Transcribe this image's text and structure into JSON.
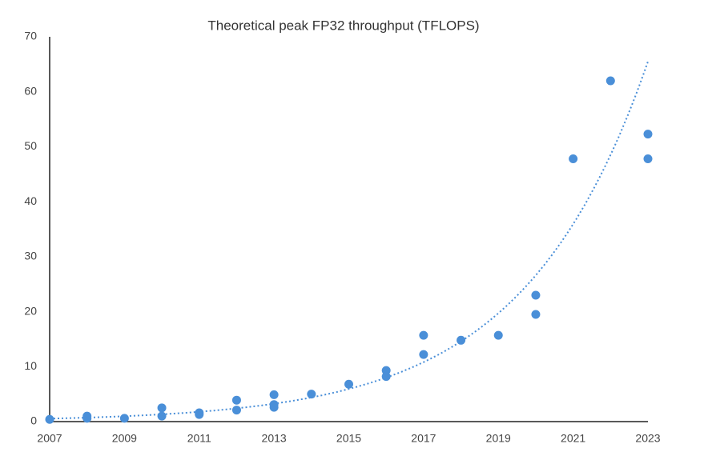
{
  "chart_data": {
    "type": "scatter",
    "title": "Theoretical peak FP32 throughput (TFLOPS)",
    "x": [
      2007,
      2008,
      2008,
      2009,
      2010,
      2010,
      2011,
      2011,
      2012,
      2012,
      2013,
      2013,
      2013,
      2014,
      2015,
      2016,
      2016,
      2017,
      2017,
      2018,
      2019,
      2020,
      2020,
      2021,
      2022,
      2023,
      2023
    ],
    "series": [
      {
        "color": "#4a8fd8",
        "values": [
          0.4,
          1.0,
          0.6,
          0.6,
          2.5,
          1.0,
          1.6,
          1.3,
          3.9,
          2.1,
          4.9,
          3.1,
          2.6,
          5.0,
          6.8,
          9.3,
          8.2,
          15.7,
          12.2,
          14.8,
          15.7,
          23.0,
          19.5,
          47.8,
          62.0,
          52.3,
          47.8
        ]
      }
    ],
    "xlim": [
      2007,
      2023
    ],
    "xticks": [
      2007,
      2009,
      2011,
      2013,
      2015,
      2017,
      2019,
      2021,
      2023
    ],
    "ylim": [
      0,
      70
    ],
    "yticks": [
      0,
      10,
      20,
      30,
      40,
      50,
      60,
      70
    ],
    "trendline": "exponential",
    "grid": false
  }
}
